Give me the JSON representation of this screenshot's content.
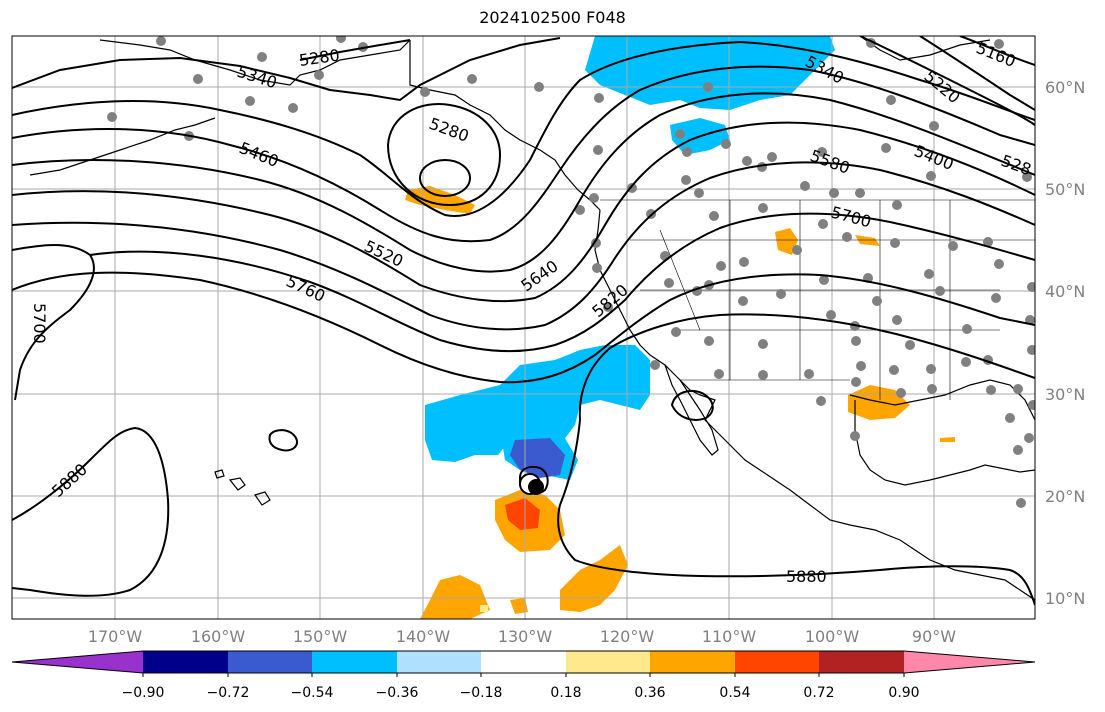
{
  "title": "2024102500 F048",
  "map": {
    "lon_labels": [
      "170°W",
      "160°W",
      "150°W",
      "140°W",
      "130°W",
      "120°W",
      "110°W",
      "100°W",
      "90°W"
    ],
    "lat_labels": [
      "60°N",
      "50°N",
      "40°N",
      "30°N",
      "20°N",
      "10°N"
    ],
    "contour_labels": [
      "5280",
      "5340",
      "5280",
      "5460",
      "5520",
      "5760",
      "5700",
      "5880",
      "5640",
      "5820",
      "5340",
      "5220",
      "5160",
      "5400",
      "5580",
      "5700",
      "5880",
      "528"
    ],
    "colors": {
      "line": "#000000",
      "grid": "#a9a9a9",
      "coast": "#000000",
      "station": "#808080"
    }
  },
  "colorbar": {
    "labels": [
      "−0.90",
      "−0.72",
      "−0.54",
      "−0.36",
      "−0.18",
      "0.18",
      "0.36",
      "0.54",
      "0.72",
      "0.90"
    ],
    "colors": [
      "#9932cc",
      "#00008b",
      "#3a5bd0",
      "#00bfff",
      "#afe1ff",
      "#ffffff",
      "#ffe98c",
      "#ffa500",
      "#ff4500",
      "#b22222",
      "#ff88aa"
    ]
  }
}
